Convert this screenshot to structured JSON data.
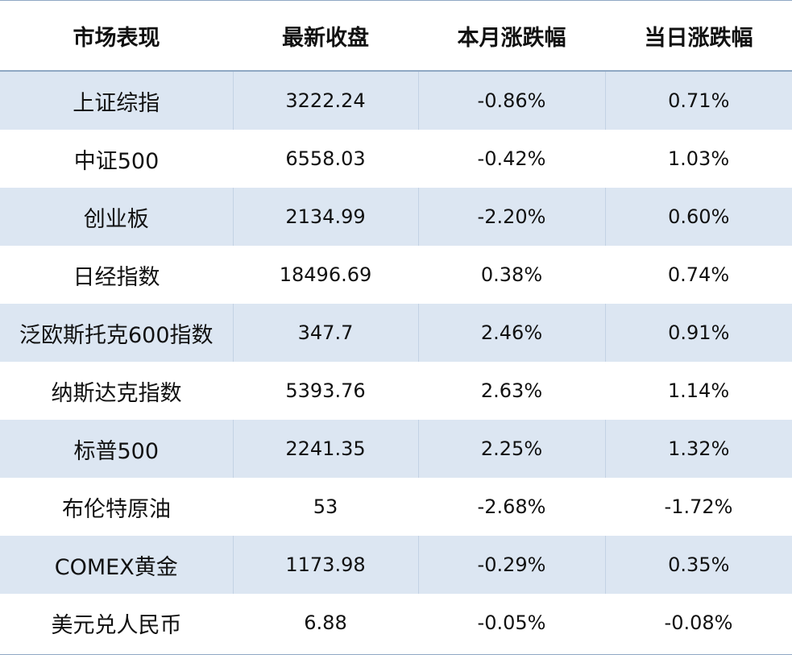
{
  "chart_data": {
    "type": "table",
    "columns": [
      "市场表现",
      "最新收盘",
      "本月涨跌幅",
      "当日涨跌幅"
    ],
    "rows": [
      {
        "name": "上证综指",
        "close": "3222.24",
        "month": "-0.86%",
        "day": "0.71%"
      },
      {
        "name": "中证500",
        "close": "6558.03",
        "month": "-0.42%",
        "day": "1.03%"
      },
      {
        "name": "创业板",
        "close": "2134.99",
        "month": "-2.20%",
        "day": "0.60%"
      },
      {
        "name": "日经指数",
        "close": "18496.69",
        "month": "0.38%",
        "day": "0.74%"
      },
      {
        "name": "泛欧斯托克600指数",
        "close": "347.7",
        "month": "2.46%",
        "day": "0.91%"
      },
      {
        "name": "纳斯达克指数",
        "close": "5393.76",
        "month": "2.63%",
        "day": "1.14%"
      },
      {
        "name": "标普500",
        "close": "2241.35",
        "month": "2.25%",
        "day": "1.32%"
      },
      {
        "name": "布伦特原油",
        "close": "53",
        "month": "-2.68%",
        "day": "-1.72%"
      },
      {
        "name": "COMEX黄金",
        "close": "1173.98",
        "month": "-0.29%",
        "day": "0.35%"
      },
      {
        "name": "美元兑人民币",
        "close": "6.88",
        "month": "-0.05%",
        "day": "-0.08%"
      }
    ]
  },
  "colors": {
    "row_shade": "#dce6f2",
    "rule": "#8fa8c4"
  }
}
